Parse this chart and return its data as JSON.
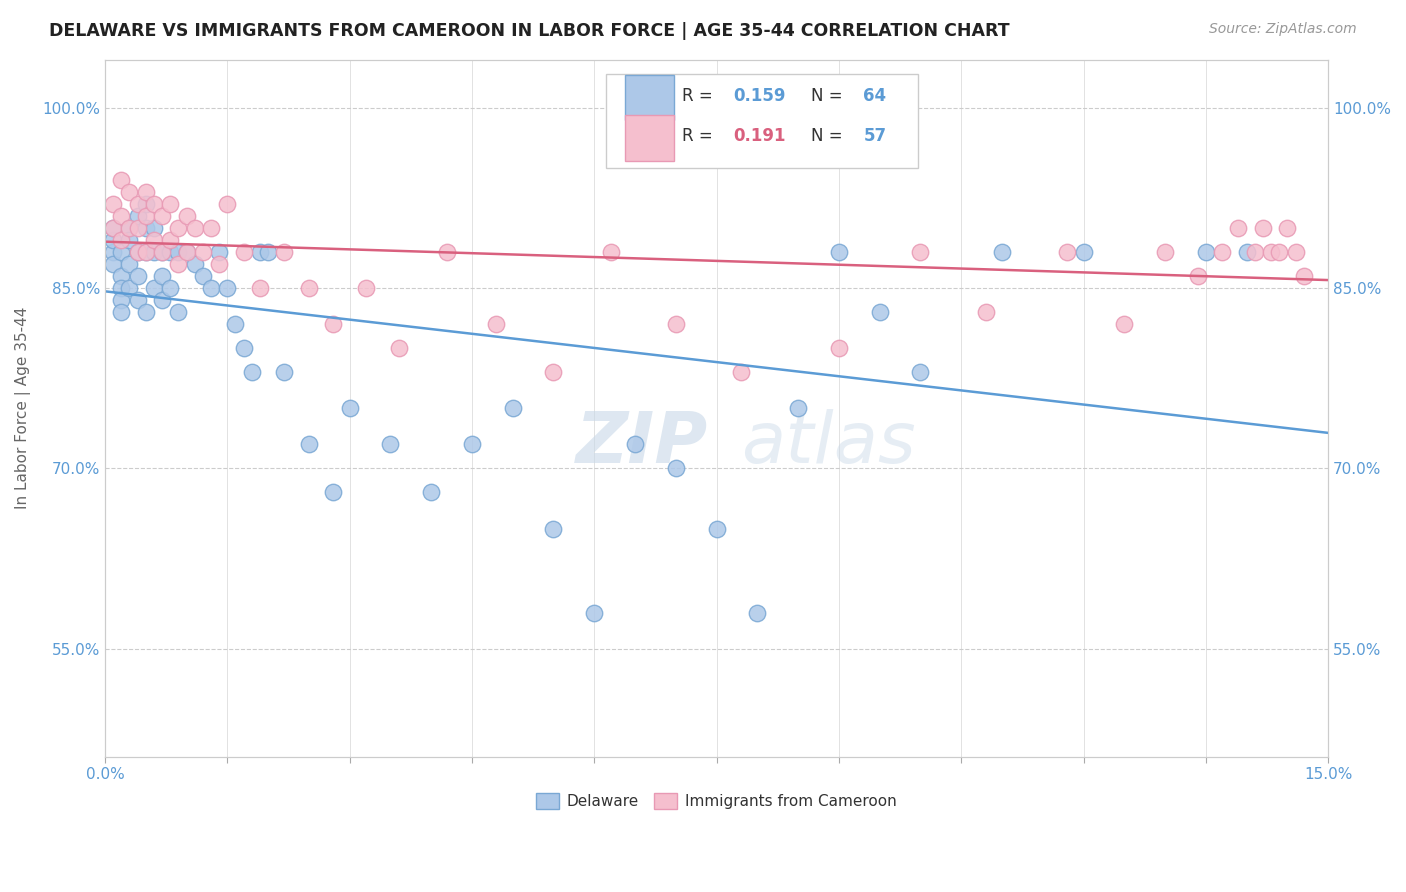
{
  "title": "DELAWARE VS IMMIGRANTS FROM CAMEROON IN LABOR FORCE | AGE 35-44 CORRELATION CHART",
  "source": "Source: ZipAtlas.com",
  "ylabel": "In Labor Force | Age 35-44",
  "xlim": [
    0.0,
    0.15
  ],
  "ylim": [
    0.46,
    1.04
  ],
  "xtick_positions": [
    0.0,
    0.015,
    0.03,
    0.045,
    0.06,
    0.075,
    0.09,
    0.105,
    0.12,
    0.135,
    0.15
  ],
  "xticklabels": [
    "0.0%",
    "",
    "",
    "",
    "",
    "",
    "",
    "",
    "",
    "",
    "15.0%"
  ],
  "ytick_positions": [
    0.55,
    0.7,
    0.85,
    1.0
  ],
  "ytick_labels": [
    "55.0%",
    "70.0%",
    "85.0%",
    "100.0%"
  ],
  "delaware_color": "#adc8e8",
  "cameroon_color": "#f5bfce",
  "delaware_edge": "#7aa8d4",
  "cameroon_edge": "#e899b4",
  "trendline_delaware": "#5b9bd5",
  "trendline_cameroon": "#d9607e",
  "legend_r_color": "#5b9bd5",
  "legend_n_color": "#5b9bd5",
  "R_delaware": 0.159,
  "N_delaware": 64,
  "R_cameroon": 0.191,
  "N_cameroon": 57,
  "watermark_zip": "ZIP",
  "watermark_atlas": "atlas",
  "background_color": "#ffffff",
  "grid_color": "#cccccc",
  "delaware_x": [
    0.001,
    0.001,
    0.001,
    0.001,
    0.002,
    0.002,
    0.002,
    0.002,
    0.002,
    0.003,
    0.003,
    0.003,
    0.003,
    0.004,
    0.004,
    0.004,
    0.004,
    0.005,
    0.005,
    0.005,
    0.005,
    0.006,
    0.006,
    0.006,
    0.007,
    0.007,
    0.007,
    0.008,
    0.008,
    0.009,
    0.009,
    0.01,
    0.011,
    0.012,
    0.013,
    0.014,
    0.015,
    0.016,
    0.017,
    0.018,
    0.019,
    0.02,
    0.022,
    0.025,
    0.028,
    0.03,
    0.035,
    0.04,
    0.045,
    0.05,
    0.055,
    0.06,
    0.065,
    0.07,
    0.075,
    0.08,
    0.085,
    0.09,
    0.095,
    0.1,
    0.11,
    0.12,
    0.135,
    0.14
  ],
  "delaware_y": [
    0.88,
    0.89,
    0.9,
    0.87,
    0.88,
    0.86,
    0.85,
    0.84,
    0.83,
    0.9,
    0.89,
    0.87,
    0.85,
    0.91,
    0.88,
    0.86,
    0.84,
    0.92,
    0.9,
    0.88,
    0.83,
    0.9,
    0.88,
    0.85,
    0.88,
    0.86,
    0.84,
    0.88,
    0.85,
    0.88,
    0.83,
    0.88,
    0.87,
    0.86,
    0.85,
    0.88,
    0.85,
    0.82,
    0.8,
    0.78,
    0.88,
    0.88,
    0.78,
    0.72,
    0.68,
    0.75,
    0.72,
    0.68,
    0.72,
    0.75,
    0.65,
    0.58,
    0.72,
    0.7,
    0.65,
    0.58,
    0.75,
    0.88,
    0.83,
    0.78,
    0.88,
    0.88,
    0.88,
    0.88
  ],
  "cameroon_x": [
    0.001,
    0.001,
    0.002,
    0.002,
    0.002,
    0.003,
    0.003,
    0.004,
    0.004,
    0.004,
    0.005,
    0.005,
    0.005,
    0.006,
    0.006,
    0.007,
    0.007,
    0.008,
    0.008,
    0.009,
    0.009,
    0.01,
    0.01,
    0.011,
    0.012,
    0.013,
    0.014,
    0.015,
    0.017,
    0.019,
    0.022,
    0.025,
    0.028,
    0.032,
    0.036,
    0.042,
    0.048,
    0.055,
    0.062,
    0.07,
    0.078,
    0.09,
    0.1,
    0.108,
    0.118,
    0.125,
    0.13,
    0.134,
    0.137,
    0.139,
    0.141,
    0.142,
    0.143,
    0.144,
    0.145,
    0.146,
    0.147
  ],
  "cameroon_y": [
    0.92,
    0.9,
    0.94,
    0.91,
    0.89,
    0.93,
    0.9,
    0.92,
    0.9,
    0.88,
    0.93,
    0.91,
    0.88,
    0.92,
    0.89,
    0.91,
    0.88,
    0.92,
    0.89,
    0.9,
    0.87,
    0.91,
    0.88,
    0.9,
    0.88,
    0.9,
    0.87,
    0.92,
    0.88,
    0.85,
    0.88,
    0.85,
    0.82,
    0.85,
    0.8,
    0.88,
    0.82,
    0.78,
    0.88,
    0.82,
    0.78,
    0.8,
    0.88,
    0.83,
    0.88,
    0.82,
    0.88,
    0.86,
    0.88,
    0.9,
    0.88,
    0.9,
    0.88,
    0.88,
    0.9,
    0.88,
    0.86
  ]
}
